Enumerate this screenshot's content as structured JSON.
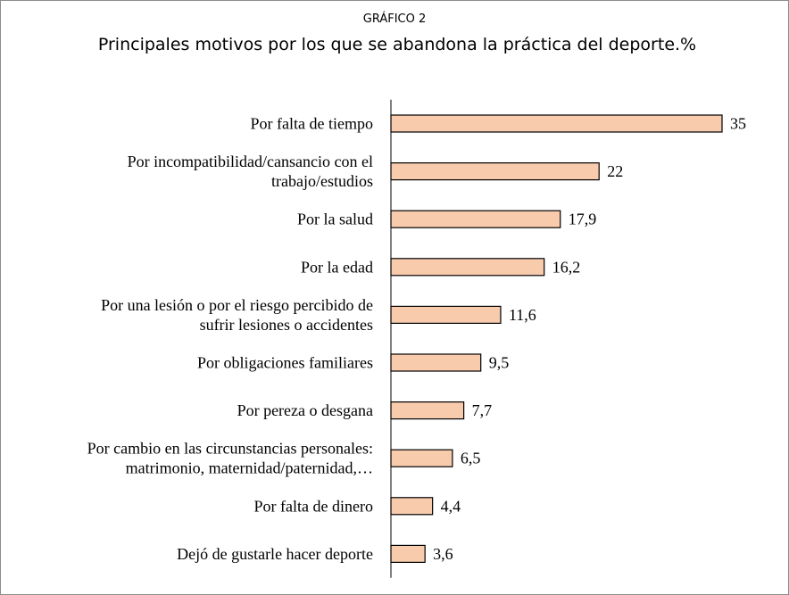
{
  "header": {
    "supertitle": "GRÁFICO 2",
    "title": "Principales motivos por los que se abandona la práctica del deporte.%"
  },
  "colors": {
    "bar_fill": "#f8cbad",
    "bar_stroke": "#000000"
  },
  "chart_data": {
    "type": "bar",
    "orientation": "horizontal",
    "title": "Principales motivos por los que se abandona la práctica del deporte.%",
    "categories": [
      [
        "Por falta de tiempo"
      ],
      [
        "Por incompatibilidad/cansancio con el",
        "trabajo/estudios"
      ],
      [
        "Por la salud"
      ],
      [
        "Por la edad"
      ],
      [
        "Por una lesión o por el riesgo percibido de",
        "sufrir lesiones o accidentes"
      ],
      [
        "Por obligaciones familiares"
      ],
      [
        "Por pereza o desgana"
      ],
      [
        "Por cambio en las circunstancias personales:",
        "matrimonio, maternidad/paternidad,…"
      ],
      [
        "Por falta de dinero"
      ],
      [
        "Dejó de gustarle hacer deporte"
      ]
    ],
    "values": [
      35,
      22,
      17.9,
      16.2,
      11.6,
      9.5,
      7.7,
      6.5,
      4.4,
      3.6
    ],
    "value_labels": [
      "35",
      "22",
      "17,9",
      "16,2",
      "11,6",
      "9,5",
      "7,7",
      "6,5",
      "4,4",
      "3,6"
    ],
    "xlim": [
      0,
      35
    ],
    "grid": false,
    "legend": "none"
  }
}
